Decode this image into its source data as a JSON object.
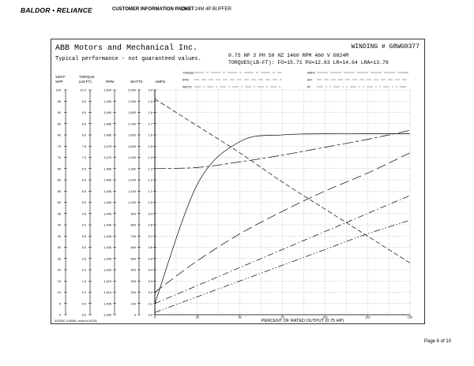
{
  "header": {
    "brand": "BALDOR • RELIANCE",
    "packet_title": "CUSTOMER INFORMATION PACKET",
    "part": "3348 - 24M 4P BUFFER"
  },
  "sheet": {
    "company": "ABB Motors and Mechanical Inc.",
    "subtitle": "Typical performance - not guaranteed values.",
    "winding": "WINDING # G8WG0377",
    "rating_line1": "0.75 HP  3 PH  50 HZ  1460 RPM  460 V  G824M",
    "rating_line2": "TORQUES(LB-FT): FO=15.71  PU=12.63  LR=14.64  LRA=13.78",
    "legend": {
      "left": [
        "TORQUE",
        "RPM",
        "WATTS"
      ],
      "right": [
        "AMPS",
        "EFF",
        "PF"
      ]
    },
    "columns": {
      "header_row1": [
        "%EFF",
        "TORQUE",
        "",
        "",
        ""
      ],
      "header_row2": [
        "%PF",
        "(LB-FT)",
        "RPM",
        "WATTS",
        "AMPS"
      ],
      "eff": [
        "100",
        "95",
        "90",
        "85",
        "80",
        "75",
        "70",
        "65",
        "60",
        "55",
        "50",
        "45",
        "40",
        "35",
        "30",
        "25",
        "20",
        "15",
        "10",
        "5",
        "0"
      ],
      "torque": [
        "10.0",
        "9.5",
        "9.0",
        "8.5",
        "8.0",
        "7.5",
        "7.0",
        "6.5",
        "6.0",
        "5.5",
        "5.0",
        "4.5",
        "4.0",
        "3.5",
        "3.0",
        "2.5",
        "2.0",
        "1.5",
        "1.0",
        "0.5",
        "0.0"
      ],
      "rpm": [
        "1,500",
        "1,495",
        "1,490",
        "1,485",
        "1,480",
        "1,475",
        "1,470",
        "1,465",
        "1,460",
        "1,455",
        "1,450",
        "1,445",
        "1,440",
        "1,435",
        "1,430",
        "1,425",
        "1,420",
        "1,415",
        "1,410",
        "1,405",
        "1,400"
      ],
      "watts": [
        "2,000",
        "1,900",
        "1,800",
        "1,700",
        "1,600",
        "1,500",
        "1,400",
        "1,300",
        "1,200",
        "1,100",
        "1,000",
        "900",
        "800",
        "700",
        "600",
        "500",
        "400",
        "300",
        "200",
        "100",
        "0"
      ],
      "amps": [
        "2.0",
        "1.9",
        "1.8",
        "1.7",
        "1.6",
        "1.5",
        "1.4",
        "1.3",
        "1.2",
        "1.1",
        "1.0",
        "0.9",
        "0.8",
        "0.7",
        "0.6",
        "0.5",
        "0.4",
        "0.3",
        "0.2",
        "0.1",
        "0.0"
      ]
    },
    "x_ticks": [
      "0",
      "25",
      "50",
      "75",
      "100",
      "125",
      "150"
    ],
    "x_label": "PERCENT OF RATED OUTPUT (0.75 HP)",
    "footnote": "3/2/2007 4:35AM, record # 61326"
  },
  "page_number": "Page 6 of 10",
  "chart_data": {
    "type": "line",
    "x": [
      0,
      25,
      50,
      75,
      100,
      125,
      150
    ],
    "xlim": [
      0,
      150
    ],
    "ylim": [
      0,
      100
    ],
    "series": [
      {
        "style": "solid",
        "values": [
          5,
          58,
          77,
          80,
          80.5,
          80.5,
          80.5
        ]
      },
      {
        "style": "short-dash",
        "values": [
          96,
          84,
          72,
          59,
          47,
          35,
          23
        ]
      },
      {
        "style": "long-dash-short",
        "values": [
          65,
          65.5,
          68,
          71,
          74.5,
          78,
          82
        ]
      },
      {
        "style": "long-dash",
        "values": [
          10,
          24,
          36,
          46,
          55,
          63,
          72
        ]
      },
      {
        "style": "dash-dot",
        "values": [
          5,
          13,
          21,
          29,
          37,
          45,
          53
        ]
      },
      {
        "style": "dash-dot-dot",
        "values": [
          1,
          8,
          15,
          22,
          29,
          36,
          42
        ]
      }
    ]
  }
}
